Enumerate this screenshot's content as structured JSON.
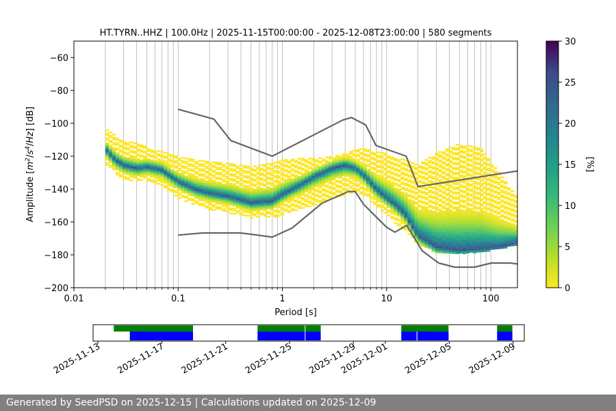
{
  "chart_data": [
    {
      "type": "heatmap",
      "title": "HT.TYRN..HHZ | 100.0Hz | 2025-11-15T00:00:00 - 2025-12-08T23:00:00 | 580 segments",
      "xlabel": "Period [s]",
      "ylabel_parts": [
        "Amplitude [",
        "m",
        "2",
        "/",
        "s",
        "4",
        "/",
        "Hz",
        "] [dB]"
      ],
      "x_scale": "log",
      "xlim": [
        0.01,
        180
      ],
      "ylim": [
        -200,
        -50
      ],
      "x_ticks": [
        {
          "value": 0.01,
          "label": "0.01"
        },
        {
          "value": 0.1,
          "label": "0.1"
        },
        {
          "value": 1,
          "label": "1"
        },
        {
          "value": 10,
          "label": "10"
        },
        {
          "value": 100,
          "label": "100"
        }
      ],
      "y_ticks": [
        {
          "value": -60,
          "label": "−60"
        },
        {
          "value": -80,
          "label": "−80"
        },
        {
          "value": -100,
          "label": "−100"
        },
        {
          "value": -120,
          "label": "−120"
        },
        {
          "value": -140,
          "label": "−140"
        },
        {
          "value": -160,
          "label": "−160"
        },
        {
          "value": -180,
          "label": "−180"
        },
        {
          "value": -200,
          "label": "−200"
        }
      ],
      "grid": "vertical, log minor",
      "colormap": "viridis",
      "colorbar": {
        "label": "[%]",
        "range": [
          0,
          30
        ],
        "ticks": [
          {
            "value": 0,
            "label": "0"
          },
          {
            "value": 5,
            "label": "5"
          },
          {
            "value": 10,
            "label": "10"
          },
          {
            "value": 15,
            "label": "15"
          },
          {
            "value": 20,
            "label": "20"
          },
          {
            "value": 25,
            "label": "25"
          },
          {
            "value": 30,
            "label": "30"
          }
        ]
      },
      "mode_curve": {
        "x": [
          0.02,
          0.025,
          0.03,
          0.04,
          0.05,
          0.07,
          0.1,
          0.15,
          0.2,
          0.3,
          0.5,
          0.8,
          1.0,
          1.5,
          2.0,
          3.0,
          4.0,
          5.0,
          6.0,
          8.0,
          10,
          12,
          15,
          20,
          30,
          50,
          80,
          120,
          180
        ],
        "y": [
          -115,
          -122,
          -125,
          -127,
          -126,
          -128,
          -135,
          -140,
          -142,
          -144,
          -148,
          -147,
          -143,
          -137,
          -132,
          -127,
          -125,
          -127,
          -131,
          -140,
          -145,
          -149,
          -155,
          -168,
          -175,
          -177,
          -176,
          -175,
          -172
        ]
      },
      "psd_density": {
        "x": [
          0.02,
          0.025,
          0.03,
          0.04,
          0.05,
          0.07,
          0.1,
          0.15,
          0.2,
          0.3,
          0.5,
          0.8,
          1.0,
          1.5,
          2.0,
          3.0,
          4.0,
          5.0,
          6.0,
          8.0,
          10,
          12,
          15,
          20,
          30,
          50,
          80,
          120,
          180
        ],
        "lower": [
          -125,
          -130,
          -133,
          -135,
          -134,
          -138,
          -145,
          -150,
          -152,
          -154,
          -157,
          -157,
          -155,
          -152,
          -150,
          -145,
          -143,
          -141,
          -143,
          -150,
          -155,
          -160,
          -165,
          -173,
          -178,
          -179,
          -178,
          -176,
          -174
        ],
        "upper": [
          -103,
          -107,
          -110,
          -112,
          -114,
          -117,
          -120,
          -122,
          -123,
          -124,
          -126,
          -124,
          -122,
          -121,
          -121,
          -120,
          -118,
          -116,
          -115,
          -117,
          -118,
          -120,
          -122,
          -125,
          -118,
          -112,
          -115,
          -130,
          -145
        ]
      },
      "reference_curves": [
        {
          "name": "high",
          "x": [
            0.1,
            0.22,
            0.32,
            0.8,
            3.8,
            4.6,
            6.3,
            7.9,
            15.4,
            20,
            180
          ],
          "y": [
            -91.5,
            -97.4,
            -110.5,
            -120,
            -98,
            -96.5,
            -101,
            -113.5,
            -120,
            -138.5,
            -129
          ]
        },
        {
          "name": "low",
          "x": [
            0.1,
            0.17,
            0.4,
            0.8,
            1.24,
            2.4,
            4.3,
            5.0,
            6.0,
            10,
            12,
            15.6,
            21.9,
            31.6,
            45,
            70,
            101,
            154,
            180
          ],
          "y": [
            -168,
            -166.7,
            -166.7,
            -169.2,
            -163.7,
            -148.6,
            -141.5,
            -141.5,
            -149.2,
            -163.2,
            -166.2,
            -162.1,
            -177.5,
            -185,
            -187.5,
            -187.5,
            -185,
            -185,
            -185.6
          ]
        }
      ]
    },
    {
      "type": "bar",
      "xlim": [
        "2025-11-13",
        "2025-12-10"
      ],
      "x_ticks": [
        "2025-11-13",
        "2025-11-17",
        "2025-11-21",
        "2025-11-25",
        "2025-11-29",
        "2025-12-01",
        "2025-12-05",
        "2025-12-09"
      ],
      "series": [
        {
          "color": "#008000",
          "intervals": [
            [
              "2025-11-14",
              "2025-11-19"
            ],
            [
              "2025-11-23",
              "2025-11-26"
            ],
            [
              "2025-11-26",
              "2025-11-27"
            ],
            [
              "2025-12-02",
              "2025-12-05"
            ],
            [
              "2025-12-08",
              "2025-12-09"
            ]
          ]
        },
        {
          "color": "#0000ff",
          "intervals": [
            [
              "2025-11-15",
              "2025-11-19"
            ],
            [
              "2025-11-23",
              "2025-11-26"
            ],
            [
              "2025-11-26",
              "2025-11-27"
            ],
            [
              "2025-12-02",
              "2025-12-03"
            ],
            [
              "2025-12-03",
              "2025-12-05"
            ],
            [
              "2025-12-08",
              "2025-12-09"
            ]
          ]
        }
      ]
    }
  ],
  "footer": "Generated by SeedPSD on 2025-12-15 | Calculations updated on 2025-12-09"
}
